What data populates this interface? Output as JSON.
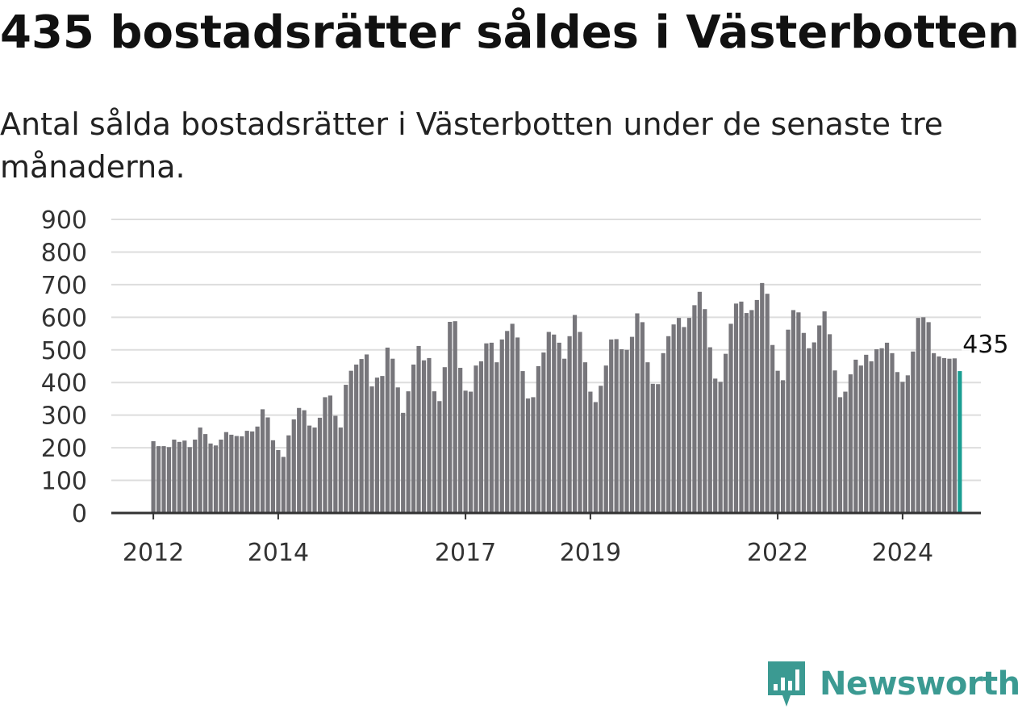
{
  "title": "435 bostadsrätter såldes i Västerbotten",
  "subtitle": "Antal sålda bostadsrätter i Västerbotten under de senaste tre månaderna.",
  "brand": {
    "name": "Newsworthy",
    "color": "#3b9a92",
    "icon": "newsworthy-logo-icon"
  },
  "colors": {
    "bar": "#77767b",
    "highlight": "#1a9e92",
    "grid": "#dddddd",
    "axis": "#333333"
  },
  "chart_data": {
    "type": "bar",
    "title": "",
    "xlabel": "",
    "ylabel": "",
    "ylim": [
      0,
      900
    ],
    "yticks": [
      "0",
      "100",
      "200",
      "300",
      "400",
      "500",
      "600",
      "700",
      "800",
      "900"
    ],
    "xticks": [
      "2012",
      "2014",
      "2017",
      "2019",
      "2022",
      "2024"
    ],
    "x_start": "2012-01",
    "x_end": "2024-10",
    "grid": true,
    "highlight_last": true,
    "annotation": "435",
    "values": [
      220,
      205,
      205,
      202,
      225,
      218,
      222,
      202,
      225,
      262,
      242,
      213,
      207,
      225,
      248,
      240,
      236,
      235,
      252,
      250,
      265,
      318,
      293,
      223,
      193,
      172,
      238,
      287,
      322,
      315,
      268,
      262,
      292,
      355,
      360,
      298,
      262,
      393,
      436,
      455,
      472,
      486,
      388,
      415,
      420,
      507,
      473,
      385,
      307,
      373,
      455,
      512,
      468,
      475,
      373,
      343,
      447,
      586,
      588,
      445,
      375,
      372,
      452,
      465,
      520,
      522,
      462,
      532,
      558,
      580,
      538,
      435,
      351,
      355,
      450,
      492,
      555,
      547,
      522,
      473,
      542,
      607,
      555,
      462,
      372,
      340,
      390,
      452,
      532,
      533,
      502,
      500,
      540,
      612,
      585,
      462,
      396,
      395,
      490,
      542,
      578,
      598,
      570,
      598,
      637,
      678,
      625,
      508,
      412,
      402,
      488,
      580,
      642,
      648,
      613,
      622,
      653,
      705,
      672,
      515,
      436,
      407,
      562,
      622,
      615,
      552,
      505,
      523,
      575,
      618,
      548,
      437,
      355,
      372,
      425,
      470,
      452,
      485,
      465,
      502,
      505,
      522,
      490,
      432,
      402,
      422,
      495,
      598,
      600,
      585,
      490,
      480,
      475,
      473,
      474,
      435
    ]
  }
}
